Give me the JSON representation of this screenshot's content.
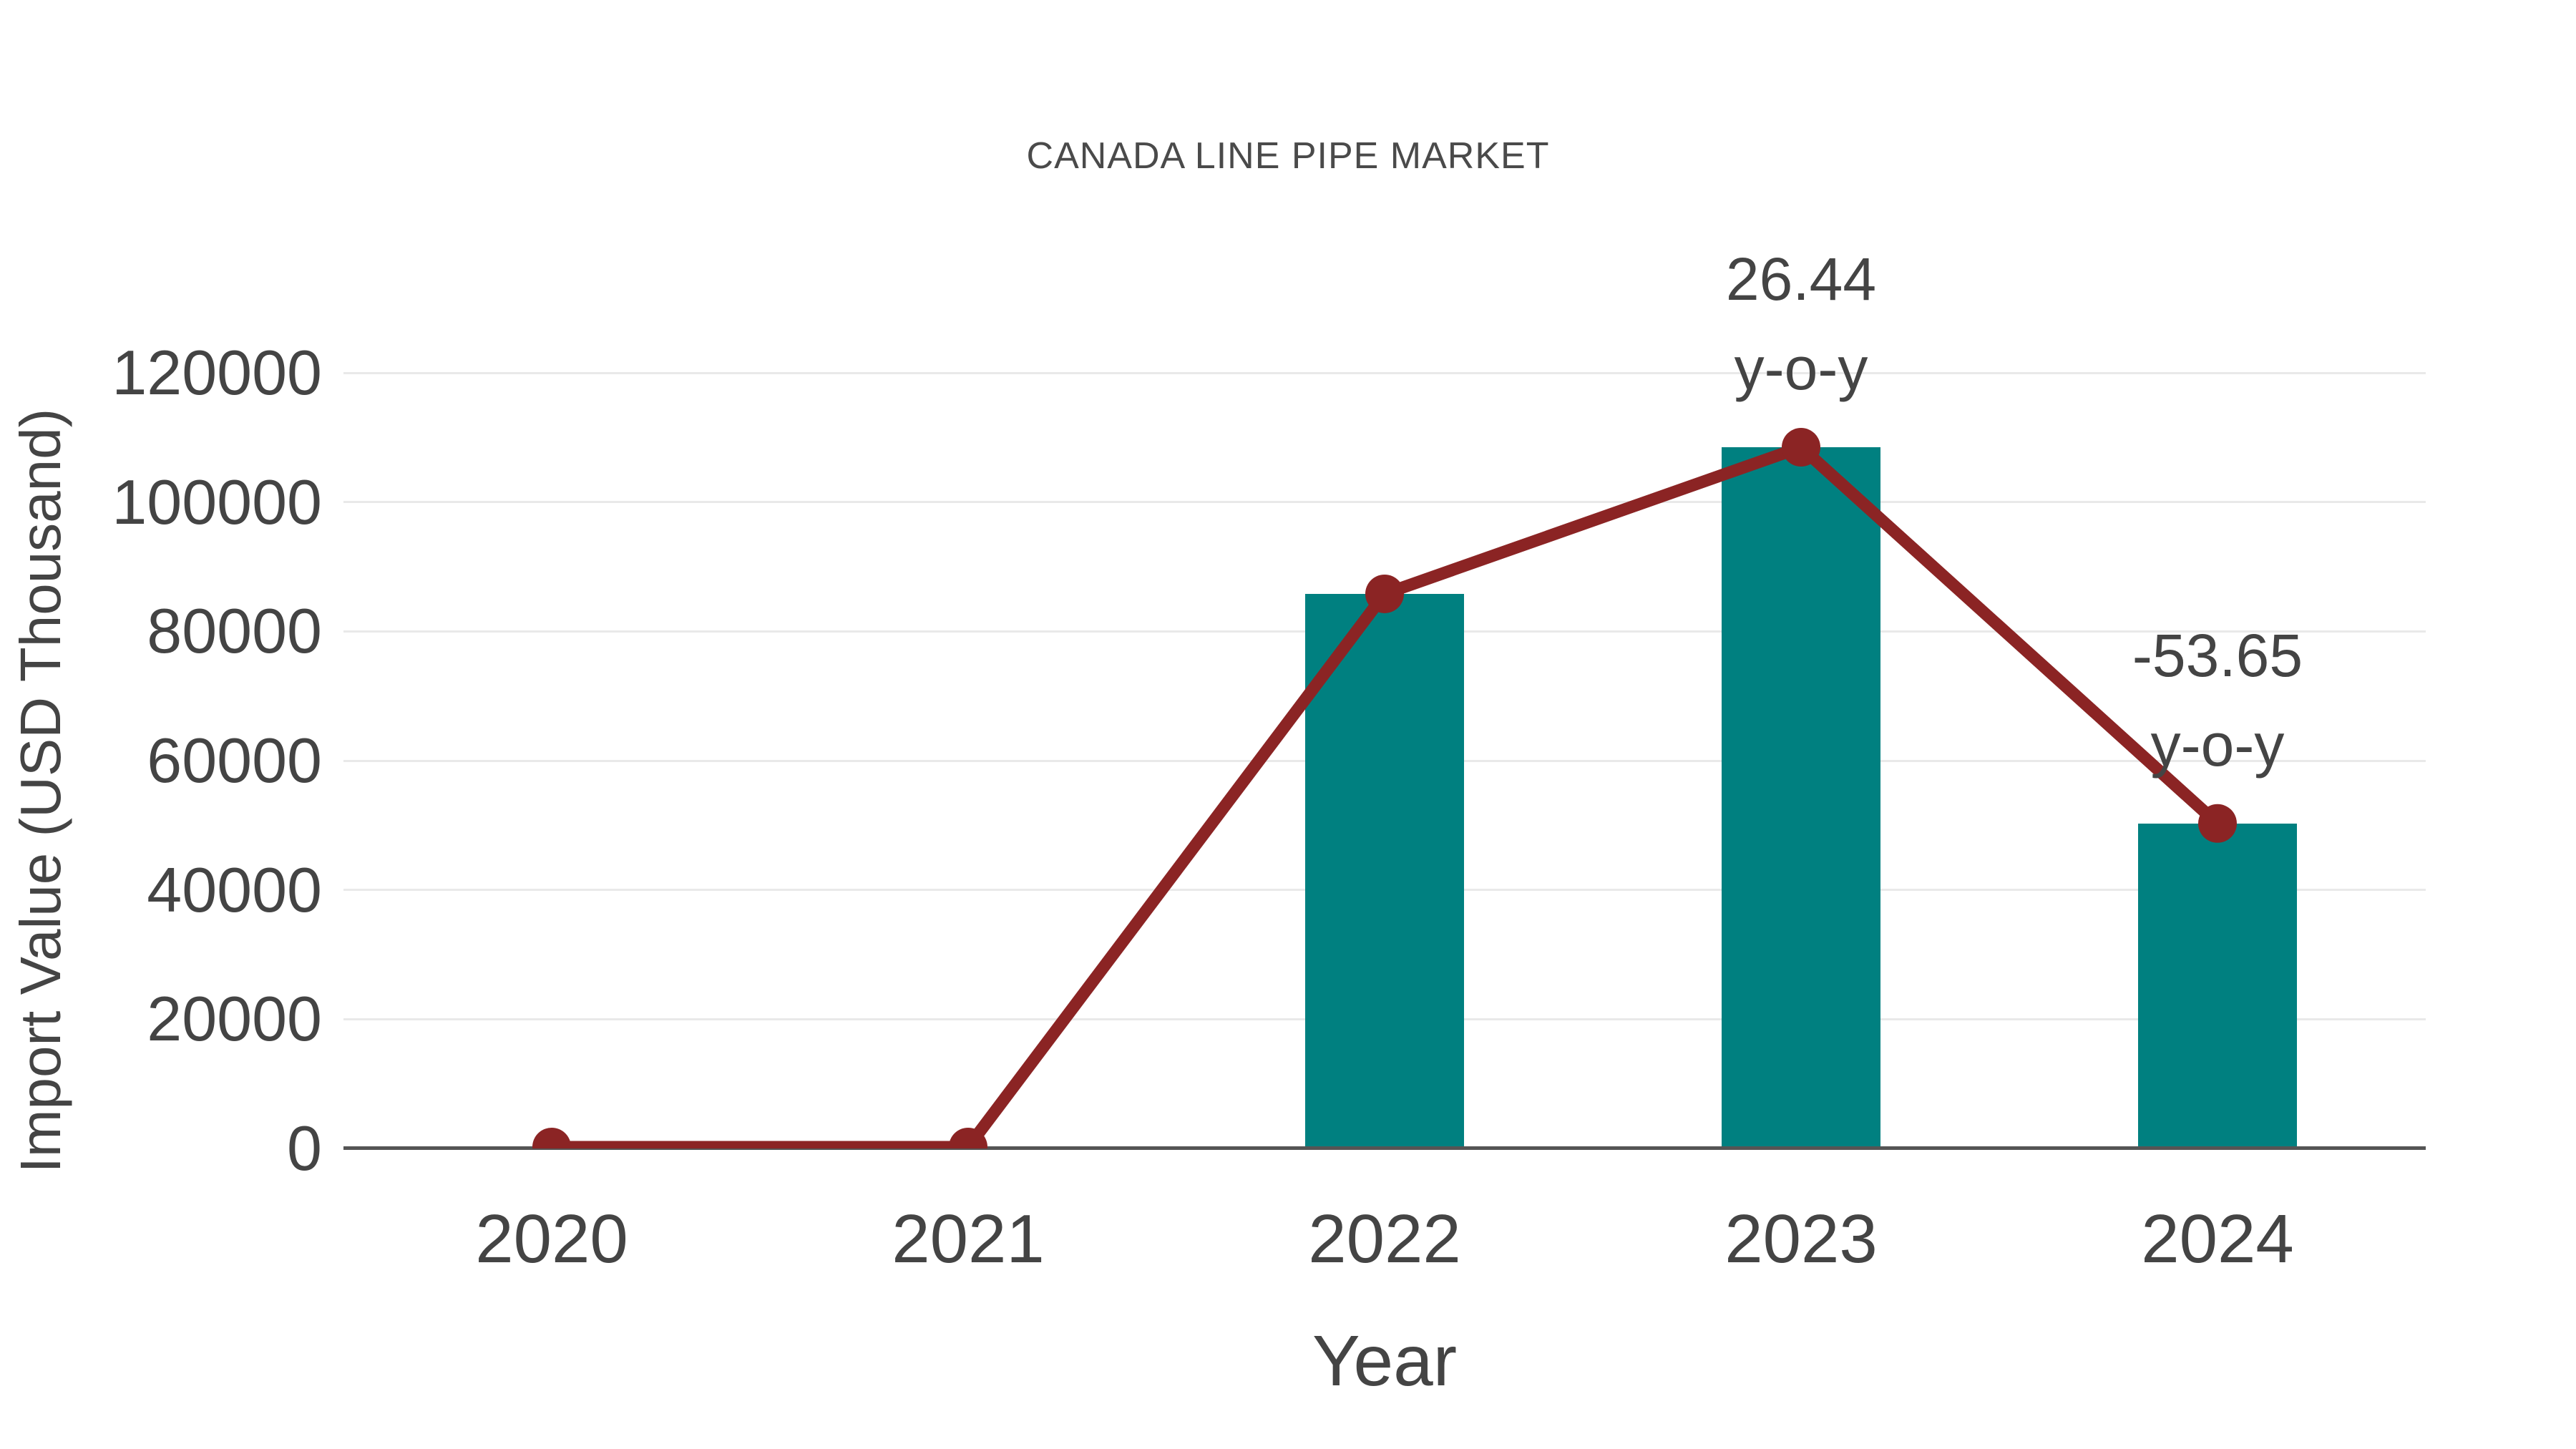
{
  "chart_data": {
    "type": "bar+line",
    "title": "CANADA LINE PIPE MARKET",
    "xlabel": "Year",
    "ylabel": "Import Value (USD Thousand)",
    "categories": [
      "2020",
      "2021",
      "2022",
      "2023",
      "2024"
    ],
    "series": [
      {
        "name": "Import Value bars",
        "type": "bar",
        "color": "#008080",
        "values": [
          0,
          0,
          85800,
          108485,
          50283
        ]
      },
      {
        "name": "Import Value trend line",
        "type": "line",
        "color": "#8b2424",
        "values": [
          0,
          0,
          85800,
          108485,
          50283
        ]
      }
    ],
    "annotations": [
      {
        "category": "2023",
        "lines": [
          "26.44",
          "y-o-y"
        ]
      },
      {
        "category": "2024",
        "lines": [
          "-53.65",
          "y-o-y"
        ]
      }
    ],
    "ylim": [
      0,
      120000
    ],
    "ytick_step": 20000,
    "yticks": [
      0,
      20000,
      40000,
      60000,
      80000,
      100000,
      120000
    ],
    "grid": true,
    "legend": "none",
    "colors": {
      "bar": "#008080",
      "line": "#8b2424",
      "grid": "#e9e9e9",
      "axis": "#555555",
      "text": "#444444"
    }
  }
}
